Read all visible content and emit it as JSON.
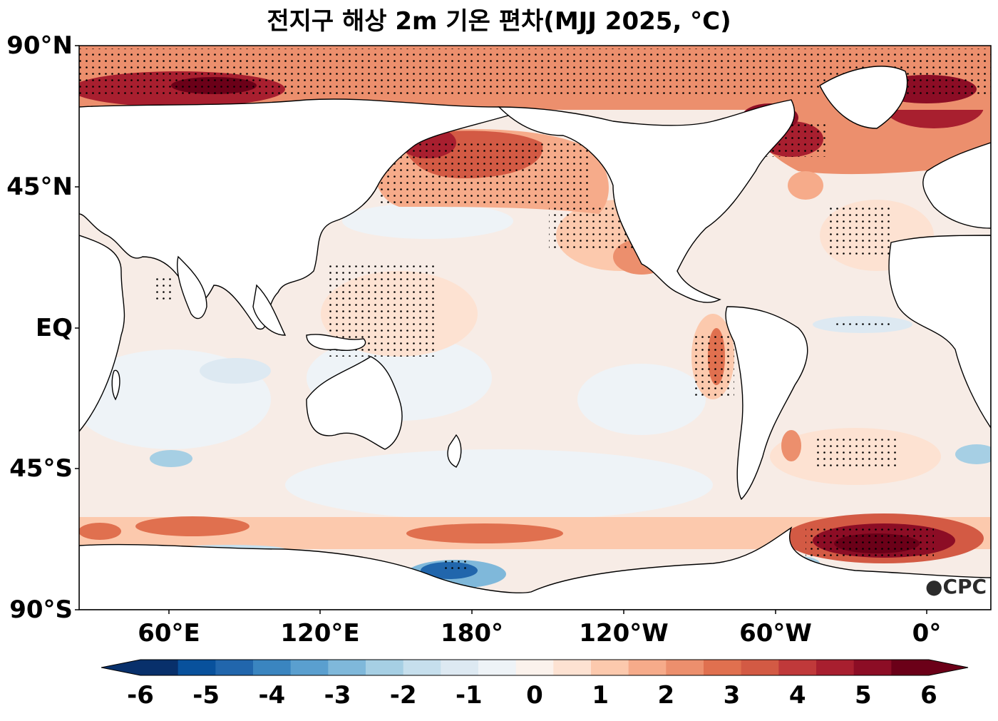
{
  "title": "전지구 해상 2m 기온 편차(MJJ 2025, °C)",
  "lat_labels": [
    "90°N",
    "45°N",
    "EQ",
    "45°S",
    "90°S"
  ],
  "lon_labels": [
    "60°E",
    "120°E",
    "180°",
    "120°W",
    "60°W",
    "0°"
  ],
  "colorbar": {
    "ticks": [
      "-6",
      "-5",
      "-4",
      "-3",
      "-2",
      "-1",
      "0",
      "1",
      "2",
      "3",
      "4",
      "5",
      "6"
    ],
    "min": -6,
    "max": 6,
    "step": 0.5,
    "colors": [
      "#08306b",
      "#08519c",
      "#2166ac",
      "#3a85c0",
      "#5a9fcf",
      "#7fb8da",
      "#a6cfe4",
      "#c6dfed",
      "#dde9f2",
      "#eef3f7",
      "#fbf2ec",
      "#fde2d2",
      "#fcc9ad",
      "#f6ab8a",
      "#ec8f6d",
      "#e0704f",
      "#d35a44",
      "#c0393a",
      "#a81f2f",
      "#8c0d25",
      "#6b0018"
    ]
  },
  "logo": "CPC",
  "colors": {
    "land": "#ffffff",
    "coast": "#000000",
    "neutral_ocean": "#f7ece6",
    "warm": "#e0704f",
    "strong_warm": "#a81f2f",
    "cool": "#a6cfe4",
    "strong_cool": "#2166ac"
  }
}
